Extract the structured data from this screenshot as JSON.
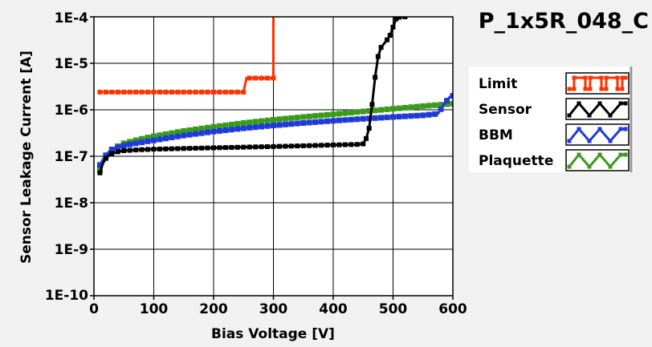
{
  "chart_data": {
    "type": "line",
    "title": "P_1x5R_048_C",
    "xlabel": "Bias Voltage [V]",
    "ylabel": "Sensor Leakage Current [A]",
    "x_scale": "linear",
    "y_scale": "log",
    "xlim": [
      0,
      600
    ],
    "ylim": [
      1e-10,
      0.0001
    ],
    "x_ticks": [
      0,
      100,
      200,
      300,
      400,
      500,
      600
    ],
    "x_tick_labels": [
      "0",
      "100",
      "200",
      "300",
      "400",
      "500",
      "600"
    ],
    "y_ticks": [
      1e-10,
      1e-09,
      1e-08,
      1e-07,
      1e-06,
      1e-05,
      0.0001
    ],
    "y_tick_labels": [
      "1E-10",
      "1E-9",
      "1E-8",
      "1E-7",
      "1E-6",
      "1E-5",
      "1E-4"
    ],
    "grid": true,
    "legend_position": "right",
    "series": [
      {
        "name": "Limit",
        "color": "#ff3300",
        "step": true,
        "points": [
          [
            10,
            2.4e-06
          ],
          [
            250,
            2.4e-06
          ],
          [
            255,
            4.8e-06
          ],
          [
            300,
            4.8e-06
          ],
          [
            300,
            0.0001
          ]
        ]
      },
      {
        "name": "Sensor",
        "color": "#000000",
        "points": [
          [
            10,
            4.4e-08
          ],
          [
            15,
            7e-08
          ],
          [
            20,
            9e-08
          ],
          [
            25,
            1.05e-07
          ],
          [
            30,
            1.15e-07
          ],
          [
            40,
            1.25e-07
          ],
          [
            50,
            1.32e-07
          ],
          [
            75,
            1.38e-07
          ],
          [
            100,
            1.42e-07
          ],
          [
            150,
            1.47e-07
          ],
          [
            200,
            1.52e-07
          ],
          [
            250,
            1.57e-07
          ],
          [
            300,
            1.62e-07
          ],
          [
            350,
            1.68e-07
          ],
          [
            400,
            1.75e-07
          ],
          [
            440,
            1.8e-07
          ],
          [
            450,
            1.85e-07
          ],
          [
            455,
            2.4e-07
          ],
          [
            460,
            4e-07
          ],
          [
            465,
            1.3e-06
          ],
          [
            470,
            5e-06
          ],
          [
            475,
            1.4e-05
          ],
          [
            480,
            2.2e-05
          ],
          [
            490,
            3.2e-05
          ],
          [
            495,
            4e-05
          ],
          [
            500,
            6e-05
          ],
          [
            505,
            9e-05
          ],
          [
            510,
            9.8e-05
          ],
          [
            520,
            0.0001
          ]
        ]
      },
      {
        "name": "BBM",
        "color": "#1e3ad8",
        "points": [
          [
            10,
            6.5e-08
          ],
          [
            15,
            8.5e-08
          ],
          [
            20,
            1.05e-07
          ],
          [
            25,
            1.25e-07
          ],
          [
            30,
            1.4e-07
          ],
          [
            40,
            1.55e-07
          ],
          [
            50,
            1.7e-07
          ],
          [
            75,
            1.95e-07
          ],
          [
            100,
            2.2e-07
          ],
          [
            150,
            2.8e-07
          ],
          [
            200,
            3.4e-07
          ],
          [
            250,
            4e-07
          ],
          [
            300,
            4.6e-07
          ],
          [
            350,
            5.2e-07
          ],
          [
            400,
            5.8e-07
          ],
          [
            450,
            6.4e-07
          ],
          [
            500,
            7e-07
          ],
          [
            550,
            7.6e-07
          ],
          [
            575,
            8.2e-07
          ],
          [
            585,
            1.3e-06
          ],
          [
            595,
            1.9e-06
          ],
          [
            600,
            2e-06
          ]
        ]
      },
      {
        "name": "Plaquette",
        "color": "#3a9a1a",
        "points": [
          [
            10,
            5e-08
          ],
          [
            15,
            7.5e-08
          ],
          [
            20,
            1e-07
          ],
          [
            25,
            1.2e-07
          ],
          [
            30,
            1.4e-07
          ],
          [
            40,
            1.65e-07
          ],
          [
            50,
            1.9e-07
          ],
          [
            75,
            2.3e-07
          ],
          [
            100,
            2.7e-07
          ],
          [
            150,
            3.5e-07
          ],
          [
            200,
            4.3e-07
          ],
          [
            250,
            5.2e-07
          ],
          [
            300,
            6.1e-07
          ],
          [
            350,
            7e-07
          ],
          [
            400,
            8e-07
          ],
          [
            450,
            9.2e-07
          ],
          [
            500,
            1.05e-06
          ],
          [
            550,
            1.2e-06
          ],
          [
            600,
            1.35e-06
          ]
        ]
      }
    ]
  }
}
